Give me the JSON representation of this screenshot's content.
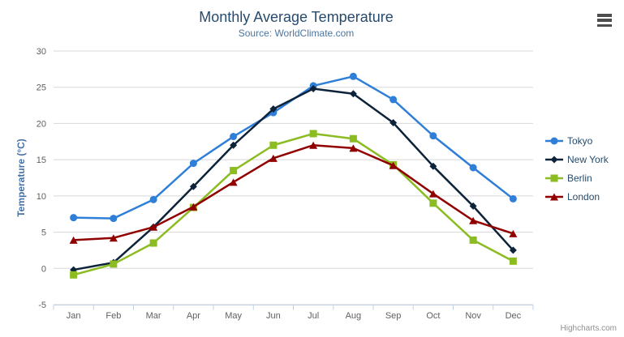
{
  "colors": {
    "title": "#274b6d",
    "subtitle": "#4d759e",
    "axis_title": "#4572a7",
    "tick_label": "#606060",
    "grid_line": "#d8d8d8",
    "axis_line": "#c0d0e0",
    "legend_text": "#274b6d",
    "credits": "#909090"
  },
  "credits": {
    "label": "Highcharts.com"
  },
  "export_menu": {
    "name": "chart-context-menu"
  },
  "chart_data": {
    "type": "line",
    "title": "Monthly Average Temperature",
    "subtitle": "Source: WorldClimate.com",
    "xlabel": "",
    "ylabel": "Temperature (°C)",
    "ylim": [
      -5,
      30
    ],
    "ytick_interval": 5,
    "yticks": [
      30,
      25,
      20,
      15,
      10,
      5,
      0,
      -5
    ],
    "grid": "horizontal",
    "legend_position": "right",
    "categories": [
      "Jan",
      "Feb",
      "Mar",
      "Apr",
      "May",
      "Jun",
      "Jul",
      "Aug",
      "Sep",
      "Oct",
      "Nov",
      "Dec"
    ],
    "series": [
      {
        "name": "Tokyo",
        "color": "#2f7ed8",
        "marker": "circle",
        "values": [
          7.0,
          6.9,
          9.5,
          14.5,
          18.2,
          21.5,
          25.2,
          26.5,
          23.3,
          18.3,
          13.9,
          9.6
        ]
      },
      {
        "name": "New York",
        "color": "#0d233a",
        "marker": "diamond",
        "values": [
          -0.2,
          0.8,
          5.7,
          11.3,
          17.0,
          22.0,
          24.8,
          24.1,
          20.1,
          14.1,
          8.6,
          2.5
        ]
      },
      {
        "name": "Berlin",
        "color": "#8bbc21",
        "marker": "square",
        "values": [
          -0.9,
          0.6,
          3.5,
          8.4,
          13.5,
          17.0,
          18.6,
          17.9,
          14.3,
          9.0,
          3.9,
          1.0
        ]
      },
      {
        "name": "London",
        "color": "#910000",
        "marker": "triangle",
        "values": [
          3.9,
          4.2,
          5.7,
          8.5,
          11.9,
          15.2,
          17.0,
          16.6,
          14.2,
          10.3,
          6.6,
          4.8
        ]
      }
    ]
  }
}
